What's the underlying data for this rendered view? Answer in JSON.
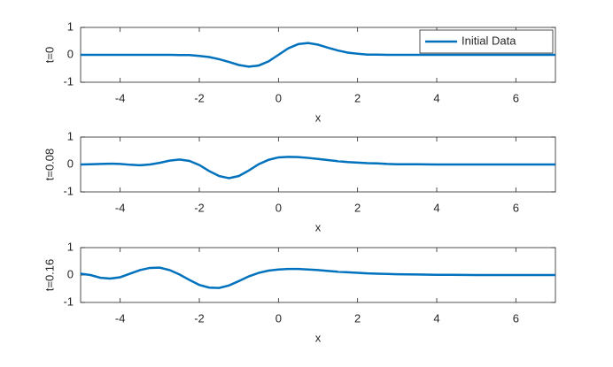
{
  "chart_data": [
    {
      "type": "line",
      "ylabel": "t=0",
      "xlabel": "x",
      "x": [
        -5,
        -4.75,
        -4.5,
        -4.25,
        -4,
        -3.75,
        -3.5,
        -3.25,
        -3,
        -2.75,
        -2.5,
        -2.25,
        -2,
        -1.75,
        -1.5,
        -1.25,
        -1,
        -0.75,
        -0.5,
        -0.25,
        0,
        0.25,
        0.5,
        0.75,
        1,
        1.25,
        1.5,
        1.75,
        2,
        2.25,
        2.5,
        2.75,
        3,
        3.5,
        4,
        5,
        6,
        7
      ],
      "series": [
        {
          "name": "Initial Data",
          "color": "#0072bd",
          "values": [
            0,
            0,
            0,
            0,
            0,
            0,
            0,
            0,
            0,
            0,
            -0.01,
            -0.01,
            -0.04,
            -0.08,
            -0.16,
            -0.26,
            -0.37,
            -0.43,
            -0.39,
            -0.24,
            0,
            0.24,
            0.39,
            0.43,
            0.37,
            0.26,
            0.16,
            0.08,
            0.04,
            0.01,
            0.01,
            0,
            0,
            0,
            0,
            0,
            0,
            0
          ]
        }
      ],
      "xlim": [
        -5,
        7
      ],
      "xticks": [
        -4,
        -2,
        0,
        2,
        4,
        6
      ],
      "ylim": [
        -1,
        1
      ],
      "yticks": [
        -1,
        0,
        1
      ],
      "legend": "upper right"
    },
    {
      "type": "line",
      "ylabel": "t=0.08",
      "xlabel": "x",
      "x": [
        -5,
        -4.75,
        -4.5,
        -4.25,
        -4,
        -3.75,
        -3.5,
        -3.25,
        -3,
        -2.75,
        -2.5,
        -2.25,
        -2,
        -1.75,
        -1.5,
        -1.25,
        -1,
        -0.75,
        -0.5,
        -0.25,
        0,
        0.25,
        0.5,
        0.75,
        1,
        1.25,
        1.5,
        1.75,
        2,
        2.25,
        2.5,
        2.75,
        3,
        3.5,
        4,
        5,
        6,
        7
      ],
      "series": [
        {
          "color": "#0072bd",
          "values": [
            0,
            0.01,
            0.02,
            0.03,
            0.02,
            -0.01,
            -0.03,
            0,
            0.06,
            0.14,
            0.18,
            0.13,
            -0.02,
            -0.24,
            -0.42,
            -0.5,
            -0.42,
            -0.22,
            0.01,
            0.17,
            0.26,
            0.28,
            0.27,
            0.24,
            0.2,
            0.16,
            0.12,
            0.09,
            0.07,
            0.05,
            0.04,
            0.02,
            0.01,
            0.01,
            0,
            0,
            0,
            0
          ]
        }
      ],
      "xlim": [
        -5,
        7
      ],
      "xticks": [
        -4,
        -2,
        0,
        2,
        4,
        6
      ],
      "ylim": [
        -1,
        1
      ],
      "yticks": [
        -1,
        0,
        1
      ]
    },
    {
      "type": "line",
      "ylabel": "t=0.16",
      "xlabel": "x",
      "x": [
        -5,
        -4.75,
        -4.5,
        -4.25,
        -4,
        -3.75,
        -3.5,
        -3.25,
        -3,
        -2.75,
        -2.5,
        -2.25,
        -2,
        -1.75,
        -1.5,
        -1.25,
        -1,
        -0.75,
        -0.5,
        -0.25,
        0,
        0.25,
        0.5,
        0.75,
        1,
        1.25,
        1.5,
        1.75,
        2,
        2.25,
        2.5,
        2.75,
        3,
        3.5,
        4,
        5,
        6,
        7
      ],
      "series": [
        {
          "color": "#0072bd",
          "values": [
            0.05,
            0,
            -0.1,
            -0.13,
            -0.08,
            0.05,
            0.18,
            0.26,
            0.27,
            0.18,
            0.02,
            -0.18,
            -0.36,
            -0.46,
            -0.47,
            -0.38,
            -0.22,
            -0.05,
            0.08,
            0.16,
            0.2,
            0.22,
            0.22,
            0.2,
            0.18,
            0.15,
            0.12,
            0.1,
            0.08,
            0.06,
            0.05,
            0.04,
            0.03,
            0.02,
            0.01,
            0,
            0,
            0
          ]
        }
      ],
      "xlim": [
        -5,
        7
      ],
      "xticks": [
        -4,
        -2,
        0,
        2,
        4,
        6
      ],
      "ylim": [
        -1,
        1
      ],
      "yticks": [
        -1,
        0,
        1
      ]
    }
  ]
}
